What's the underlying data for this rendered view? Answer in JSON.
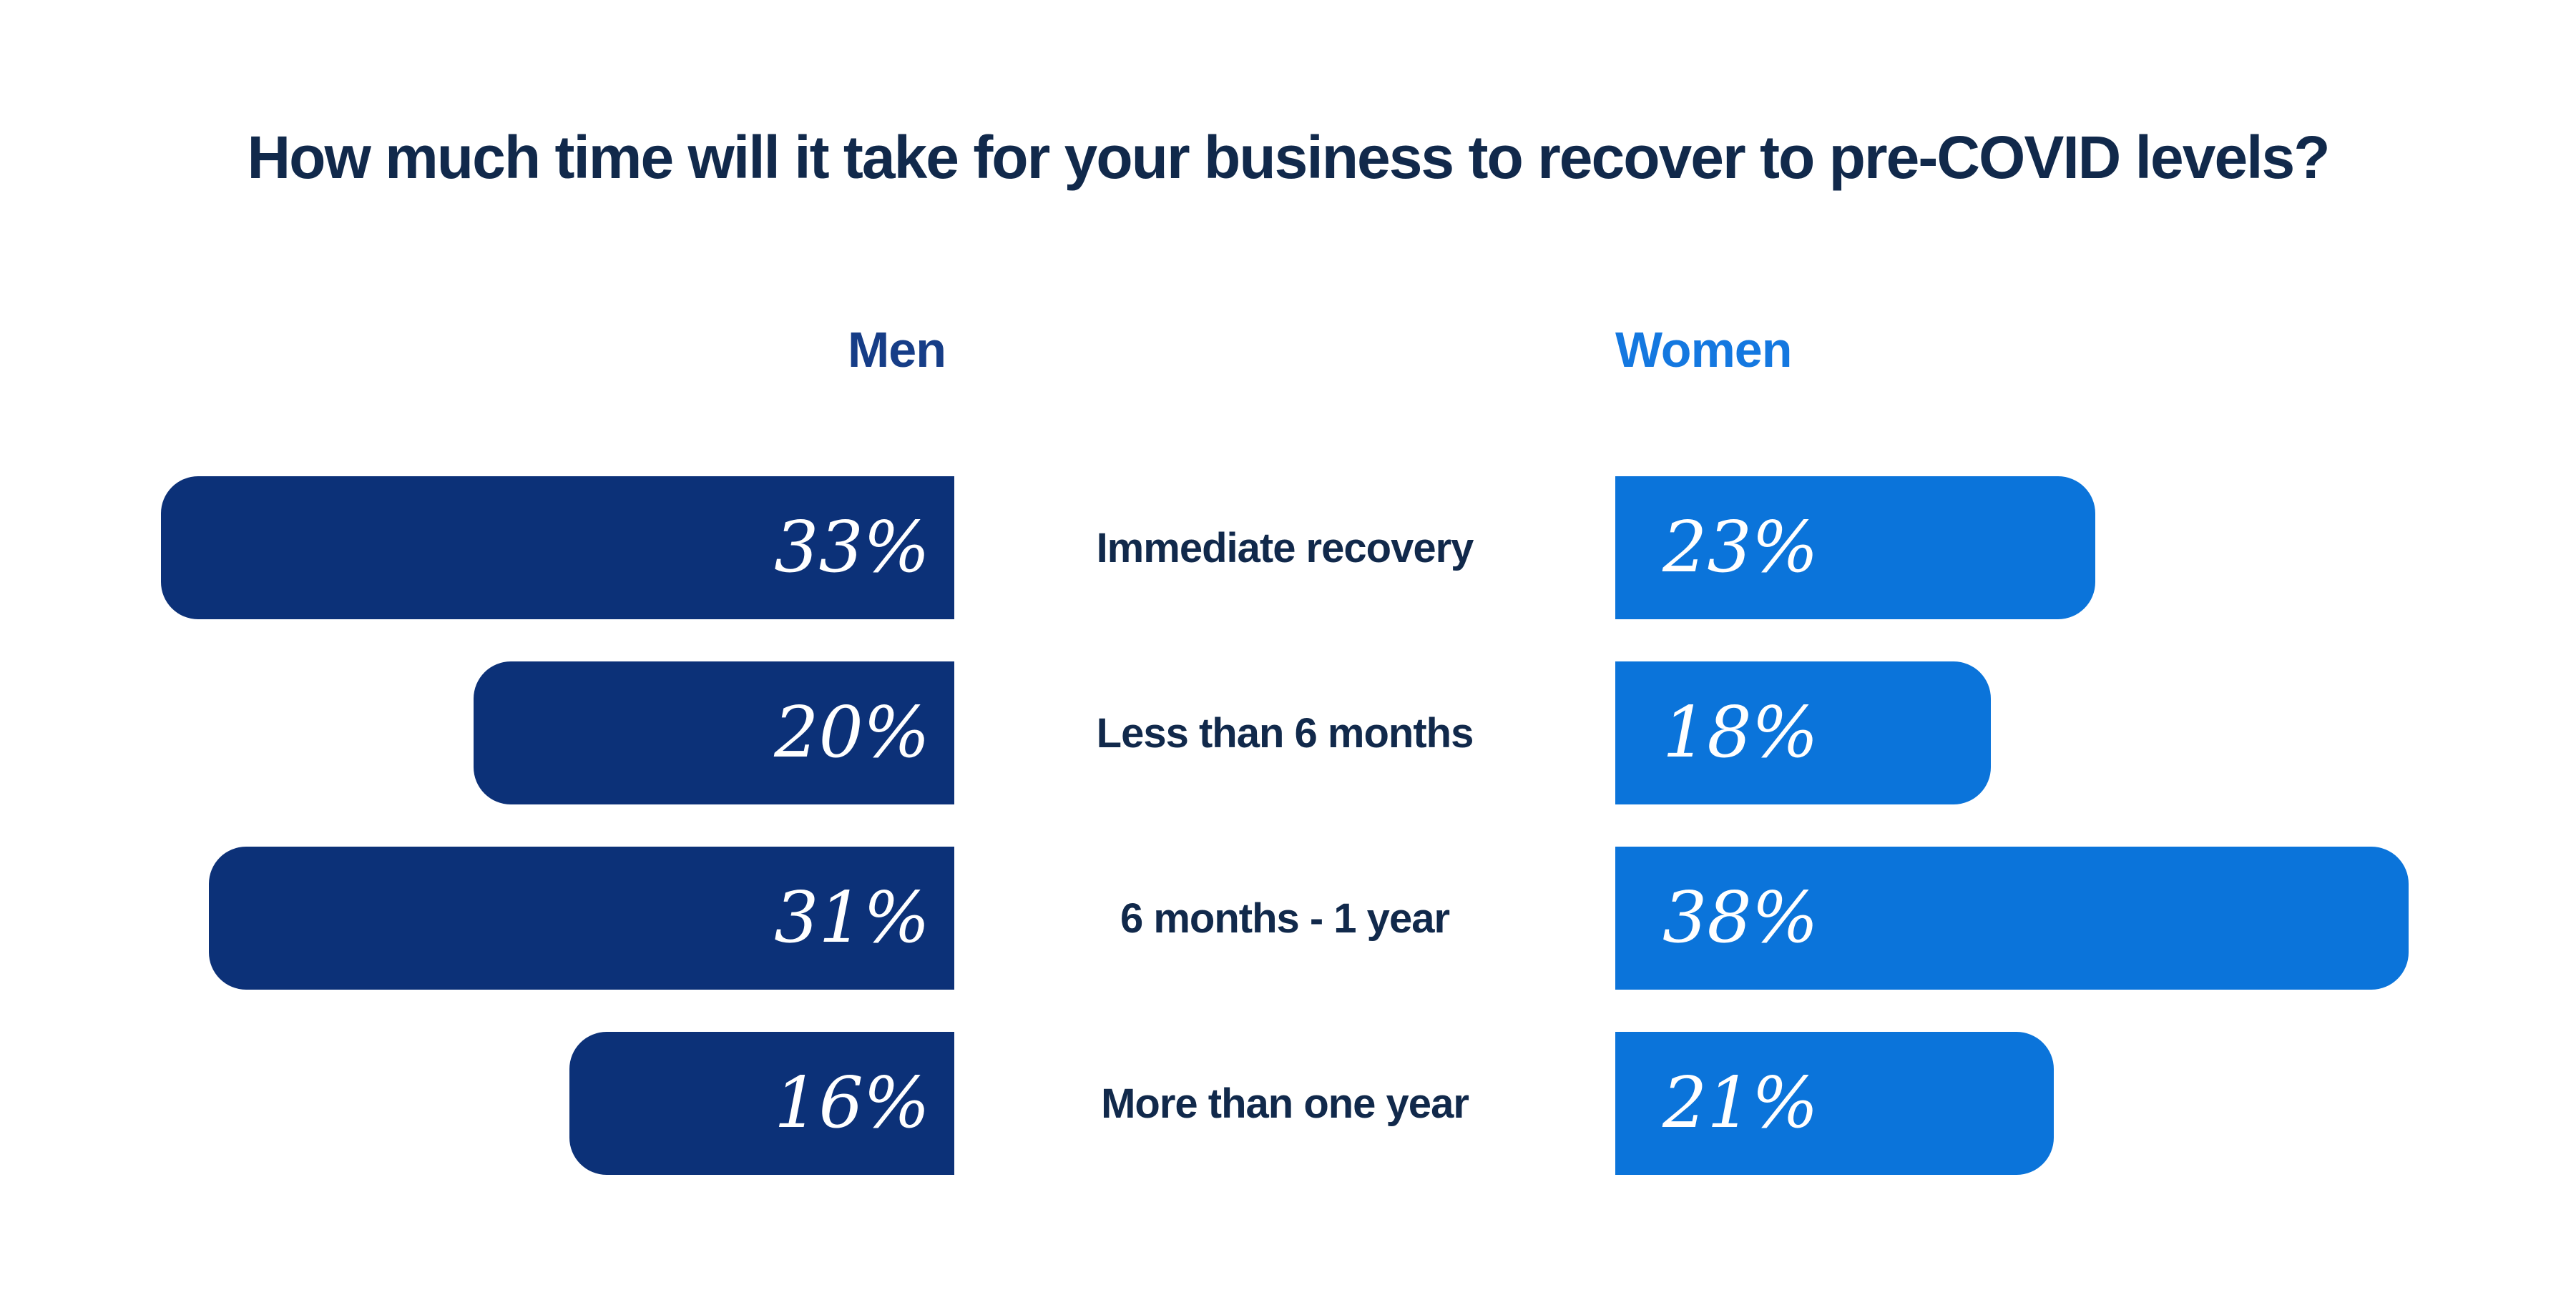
{
  "colors": {
    "background": "#ffffff",
    "title_text": "#11294b",
    "category_text": "#11294b",
    "men_bar": "#0c3178",
    "men_header": "#163d87",
    "women_bar": "#0b74da",
    "women_header": "#1478e0",
    "value_text": "#ffffff"
  },
  "title": {
    "text": "How much time will it take for your business to recover to pre-COVID levels?"
  },
  "headers": {
    "men": "Men",
    "women": "Women"
  },
  "chart_data": {
    "type": "bar",
    "subtype": "diverging-horizontal-tornado",
    "title": "How much time will it take for your business to recover to pre-COVID levels?",
    "categories": [
      "Immediate recovery",
      "Less than 6 months",
      "6 months - 1 year",
      "More than one year"
    ],
    "series": [
      {
        "name": "Men",
        "direction": "left",
        "color": "#0c3178",
        "values": [
          33,
          20,
          31,
          16
        ]
      },
      {
        "name": "Women",
        "direction": "right",
        "color": "#0b74da",
        "values": [
          23,
          18,
          38,
          21
        ]
      }
    ],
    "value_suffix": "%",
    "value_labels": {
      "men": [
        "33%",
        "20%",
        "31%",
        "16%"
      ],
      "women": [
        "23%",
        "18%",
        "38%",
        "21%"
      ]
    },
    "scaling": "each series normalized: its max value spans the full bar track",
    "grid": false,
    "axes": "none",
    "legend_position": "column headers above bar columns"
  }
}
